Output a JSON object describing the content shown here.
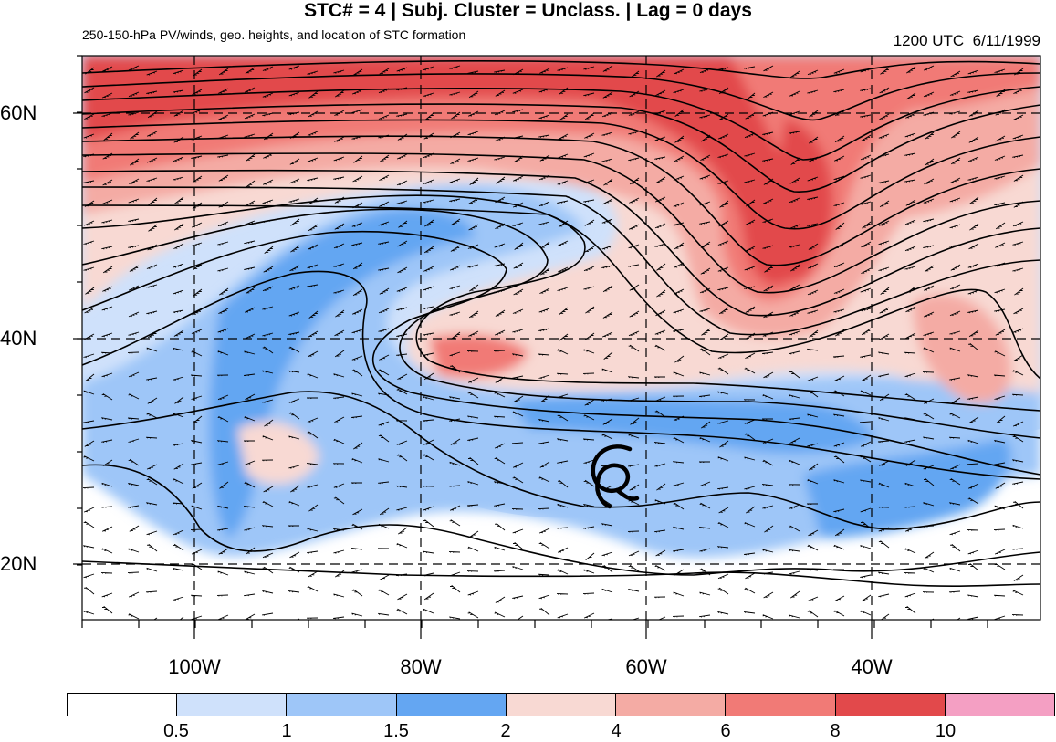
{
  "header": {
    "title": "STC# = 4 | Subj. Cluster = Unclass. | Lag = 0 days",
    "subtitle": "250-150-hPa PV/winds, geo. heights, and location of STC formation",
    "time": "1200 UTC  6/11/1999"
  },
  "axes": {
    "lat_labels": [
      "60N",
      "40N",
      "20N"
    ],
    "lon_labels": [
      "100W",
      "80W",
      "60W",
      "40W"
    ]
  },
  "colorbar": {
    "labels": [
      "0.5",
      "1",
      "1.5",
      "2",
      "4",
      "6",
      "8",
      "10"
    ],
    "colors": [
      "#ffffff",
      "#cfe1fb",
      "#9ec6f8",
      "#64a6f2",
      "#f8d9d3",
      "#f4aba4",
      "#f17a76",
      "#e2494b",
      "#f49fc3"
    ]
  },
  "map": {
    "lat_range": [
      15,
      65
    ],
    "lon_range": [
      -110,
      -25
    ],
    "stc_symbol": "cyclone-symbol",
    "stc_location": {
      "lon": -64,
      "lat": 28
    }
  }
}
